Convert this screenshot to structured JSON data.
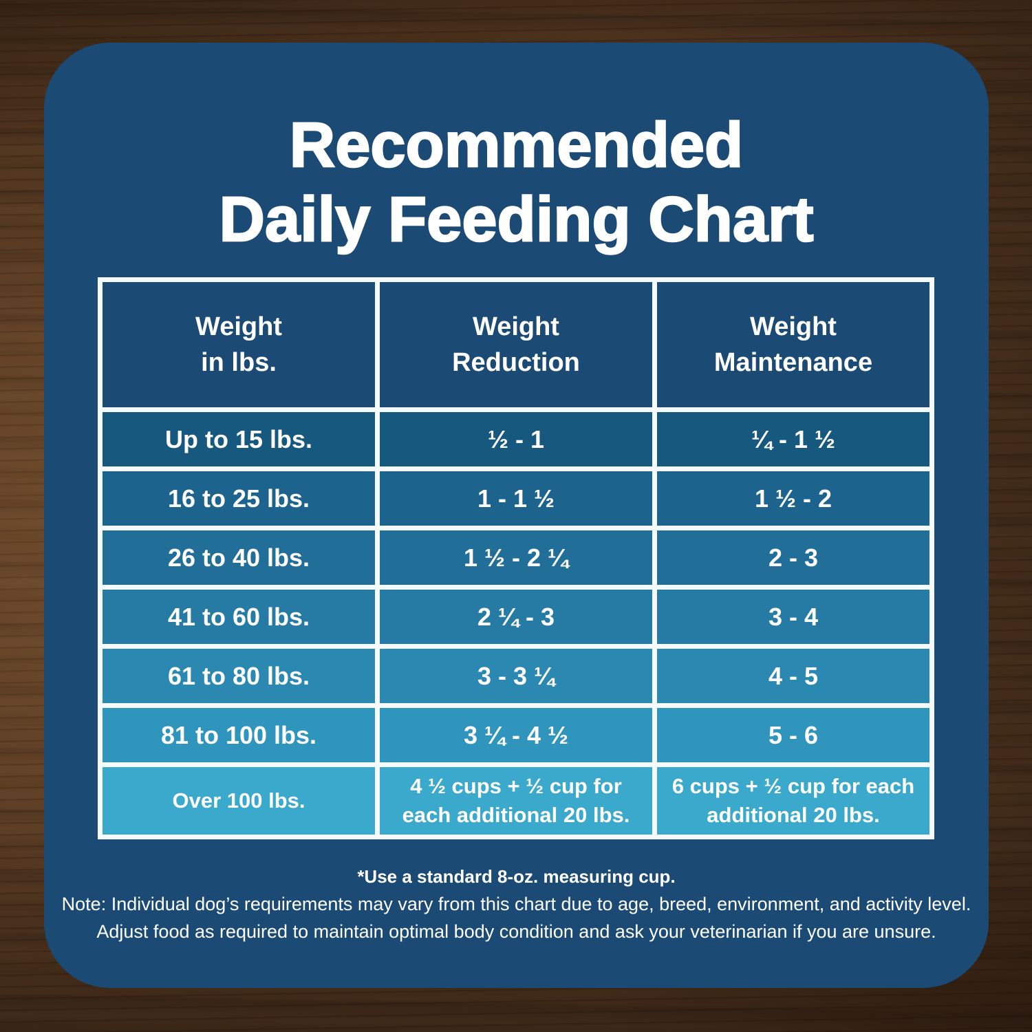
{
  "title": {
    "line1": "Recommended",
    "line2": "Daily Feeding Chart"
  },
  "colors": {
    "panel": "#1B4A74",
    "table_border": "#F5FAFD",
    "header_cell": "#1B4A74",
    "text": "#FFFFFF",
    "row_colors": [
      "#17587F",
      "#1C648D",
      "#216F99",
      "#267BA4",
      "#2B88B0",
      "#3095BC",
      "#3BA9CC"
    ]
  },
  "chart_data": {
    "type": "table",
    "title": "Recommended Daily Feeding Chart",
    "columns": [
      "Weight in lbs.",
      "Weight Reduction",
      "Weight Maintenance"
    ],
    "units": "cups per day (standard 8-oz. measuring cup)",
    "rows": [
      [
        "Up to 15 lbs.",
        "½ - 1",
        "¼ - 1 ½"
      ],
      [
        "16 to 25 lbs.",
        "1 - 1 ½",
        "1 ½ - 2"
      ],
      [
        "26 to 40 lbs.",
        "1 ½ - 2 ¼",
        "2 - 3"
      ],
      [
        "41 to 60 lbs.",
        "2 ¼ - 3",
        "3 - 4"
      ],
      [
        "61 to 80 lbs.",
        "3 - 3 ¼",
        "4 - 5"
      ],
      [
        "81 to 100 lbs.",
        "3 ¼ - 4 ½",
        "5 - 6"
      ],
      [
        "Over 100 lbs.",
        "4 ½ cups + ½ cup for each additional 20 lbs.",
        "6 cups + ½ cup for each additional 20 lbs."
      ]
    ]
  },
  "table": {
    "headers": [
      {
        "line1": "Weight",
        "line2": "in lbs."
      },
      {
        "line1": "Weight",
        "line2": "Reduction"
      },
      {
        "line1": "Weight",
        "line2": "Maintenance"
      }
    ]
  },
  "footnotes": {
    "cup": "*Use a standard 8-oz. measuring cup.",
    "note1": "Note: Individual dog’s requirements may vary from this chart due to age, breed, environment, and activity level.",
    "note2": "Adjust food as required to maintain optimal body condition and ask your veterinarian if you are unsure."
  }
}
